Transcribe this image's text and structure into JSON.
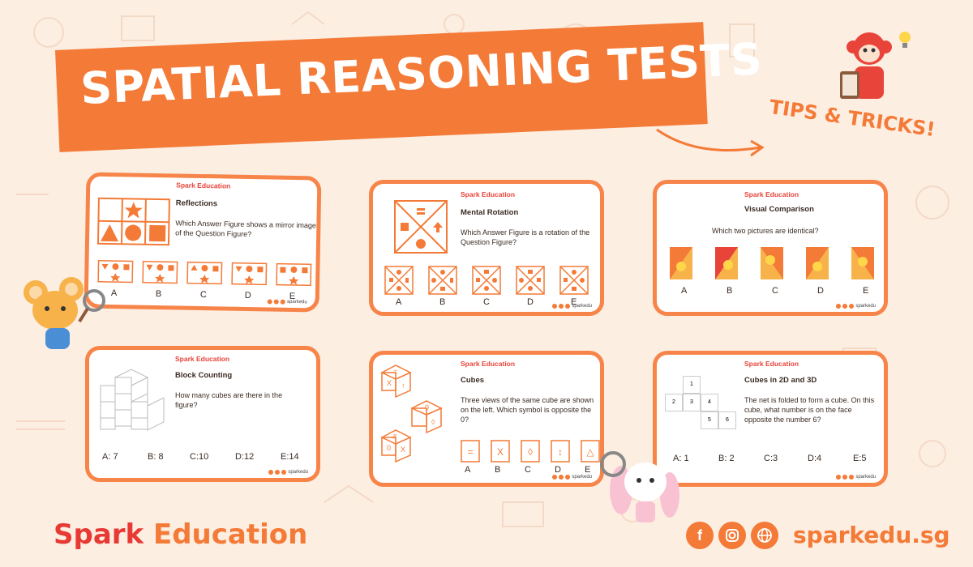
{
  "banner": {
    "title": "SPATIAL REASONING TESTS",
    "tips": "TIPS & TRICKS!"
  },
  "brand": {
    "spark": "Spark",
    "education": " Education",
    "card_brand": "Spark Education",
    "card_site": "sparkedu"
  },
  "cards": [
    {
      "title": "Reflections",
      "text": "Which Answer Figure shows a mirror image of the Question Figure?",
      "options": [
        "A",
        "B",
        "C",
        "D",
        "E"
      ]
    },
    {
      "title": "Mental Rotation",
      "text": "Which Answer Figure is a rotation of the Question Figure?",
      "options": [
        "A",
        "B",
        "C",
        "D",
        "E"
      ]
    },
    {
      "title": "Visual Comparison",
      "text": "Which two pictures are identical?",
      "options": [
        "A",
        "B",
        "C",
        "D",
        "E"
      ]
    },
    {
      "title": "Block Counting",
      "text": "How many cubes are there in the figure?",
      "options": [
        "A: 7",
        "B: 8",
        "C:10",
        "D:12",
        "E:14"
      ]
    },
    {
      "title": "Cubes",
      "text": "Three views of the same cube are shown on the left. Which symbol is opposite the 0?",
      "options": [
        "A",
        "B",
        "C",
        "D",
        "E"
      ]
    },
    {
      "title": "Cubes in 2D and 3D",
      "text": "The net is folded to form a cube. On this cube, what number is on the face opposite the number 6?",
      "options": [
        "A: 1",
        "B: 2",
        "C:3",
        "D:4",
        "E:5"
      ],
      "net_numbers": [
        "1",
        "2",
        "3",
        "4",
        "5",
        "6"
      ]
    }
  ],
  "footer": {
    "site": "sparkedu.sg",
    "icons": [
      "facebook-icon",
      "instagram-icon",
      "globe-icon"
    ]
  },
  "colors": {
    "accent": "#f47a37",
    "brand_red": "#e83a34",
    "background": "#fdeee2"
  }
}
